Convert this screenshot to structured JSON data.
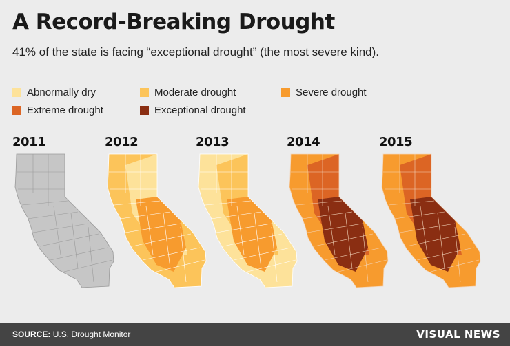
{
  "title": "A Record-Breaking Drought",
  "subtitle": "41% of the state is facing “exceptional drought” (the most severe kind).",
  "legend": [
    {
      "label": "Abnormally dry",
      "color": "#fde29a"
    },
    {
      "label": "Moderate drought",
      "color": "#fcc45a"
    },
    {
      "label": "Severe drought",
      "color": "#f79b2e"
    },
    {
      "label": "Extreme drought",
      "color": "#dc6524"
    },
    {
      "label": "Exceptional drought",
      "color": "#8a2e12"
    }
  ],
  "maps": [
    {
      "year": "2011",
      "base": "#c6c6c6",
      "layers": [],
      "outline": "#9a9a9a"
    },
    {
      "year": "2012",
      "base": "#fcc45a",
      "layers": [
        "#fde29a",
        "#f79b2e"
      ],
      "outline": "#fff"
    },
    {
      "year": "2013",
      "base": "#fde29a",
      "layers": [
        "#fcc45a",
        "#f79b2e"
      ],
      "outline": "#fff"
    },
    {
      "year": "2014",
      "base": "#f79b2e",
      "layers": [
        "#dc6524",
        "#8a2e12"
      ],
      "outline": "#f3d6bb"
    },
    {
      "year": "2015",
      "base": "#f79b2e",
      "layers": [
        "#dc6524",
        "#8a2e12"
      ],
      "outline": "#f3d6bb"
    }
  ],
  "footer": {
    "source_label": "SOURCE:",
    "source_value": "U.S. Drought Monitor",
    "brand": "VISUAL NEWS"
  }
}
